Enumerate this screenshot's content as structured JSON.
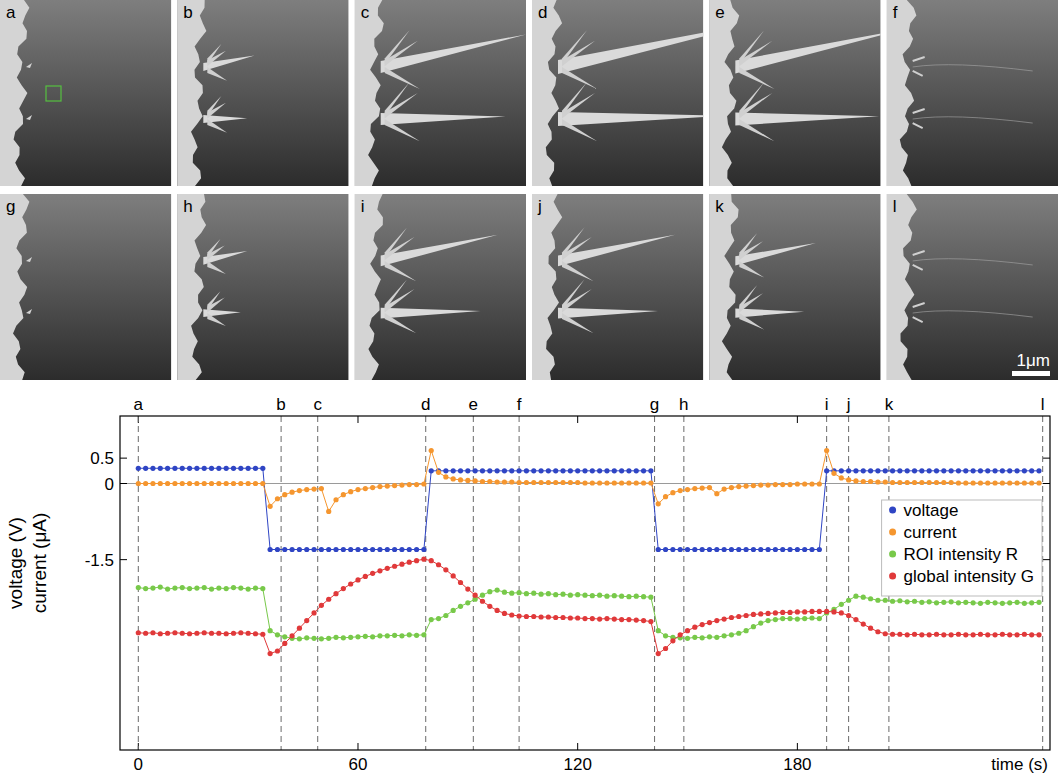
{
  "panels": {
    "labels": [
      "a",
      "b",
      "c",
      "d",
      "e",
      "f",
      "g",
      "h",
      "i",
      "j",
      "k",
      "l"
    ],
    "scale_bar": "1μm"
  },
  "chart_data": {
    "type": "line",
    "x_label": "time (s)",
    "y_label": [
      "voltage (V)",
      "current (μA)"
    ],
    "xlim": [
      -5,
      249
    ],
    "xticks": [
      0,
      60,
      120,
      180
    ],
    "ylim": [
      -5.25,
      1.33
    ],
    "yticks": [
      0.5,
      0,
      -1.5
    ],
    "legend": "right",
    "marker": "circle",
    "line_style": "solid",
    "annotations": [
      {
        "label": "a",
        "x": 0
      },
      {
        "label": "b",
        "x": 39
      },
      {
        "label": "c",
        "x": 49
      },
      {
        "label": "d",
        "x": 78.5
      },
      {
        "label": "e",
        "x": 91.5
      },
      {
        "label": "f",
        "x": 104
      },
      {
        "label": "g",
        "x": 141
      },
      {
        "label": "h",
        "x": 149
      },
      {
        "label": "i",
        "x": 188
      },
      {
        "label": "j",
        "x": 194
      },
      {
        "label": "k",
        "x": 205
      },
      {
        "label": "l",
        "x": 247
      }
    ],
    "x": [
      0,
      2,
      4,
      6,
      8,
      10,
      12,
      14,
      16,
      18,
      20,
      22,
      24,
      26,
      28,
      30,
      32,
      34,
      36,
      38,
      40,
      42,
      44,
      46,
      48,
      50,
      52,
      54,
      56,
      58,
      60,
      62,
      64,
      66,
      68,
      70,
      72,
      74,
      76,
      78,
      80,
      82,
      84,
      86,
      88,
      90,
      92,
      94,
      96,
      98,
      100,
      102,
      104,
      106,
      108,
      110,
      112,
      114,
      116,
      118,
      120,
      122,
      124,
      126,
      128,
      130,
      132,
      134,
      136,
      138,
      140,
      142,
      144,
      146,
      148,
      150,
      152,
      154,
      156,
      158,
      160,
      162,
      164,
      166,
      168,
      170,
      172,
      174,
      176,
      178,
      180,
      182,
      184,
      186,
      188,
      190,
      192,
      194,
      196,
      198,
      200,
      202,
      204,
      206,
      208,
      210,
      212,
      214,
      216,
      218,
      220,
      222,
      224,
      226,
      228,
      230,
      232,
      234,
      236,
      238,
      240,
      242,
      244,
      246
    ],
    "series": [
      {
        "name": "voltage",
        "color": "#2f45c4",
        "values": [
          0.3,
          0.3,
          0.3,
          0.3,
          0.3,
          0.3,
          0.3,
          0.3,
          0.3,
          0.3,
          0.3,
          0.3,
          0.3,
          0.3,
          0.3,
          0.3,
          0.3,
          0.3,
          -1.3,
          -1.3,
          -1.3,
          -1.3,
          -1.3,
          -1.3,
          -1.3,
          -1.3,
          -1.3,
          -1.3,
          -1.3,
          -1.3,
          -1.3,
          -1.3,
          -1.3,
          -1.3,
          -1.3,
          -1.3,
          -1.3,
          -1.3,
          -1.3,
          -1.3,
          0.25,
          0.25,
          0.25,
          0.25,
          0.25,
          0.25,
          0.25,
          0.25,
          0.25,
          0.25,
          0.25,
          0.25,
          0.25,
          0.25,
          0.25,
          0.25,
          0.25,
          0.25,
          0.25,
          0.25,
          0.25,
          0.25,
          0.25,
          0.25,
          0.25,
          0.25,
          0.25,
          0.25,
          0.25,
          0.25,
          0.25,
          -1.3,
          -1.3,
          -1.3,
          -1.3,
          -1.3,
          -1.3,
          -1.3,
          -1.3,
          -1.3,
          -1.3,
          -1.3,
          -1.3,
          -1.3,
          -1.3,
          -1.3,
          -1.3,
          -1.3,
          -1.3,
          -1.3,
          -1.3,
          -1.3,
          -1.3,
          -1.3,
          0.25,
          0.25,
          0.25,
          0.25,
          0.25,
          0.25,
          0.25,
          0.25,
          0.25,
          0.25,
          0.25,
          0.25,
          0.25,
          0.25,
          0.25,
          0.25,
          0.25,
          0.25,
          0.25,
          0.25,
          0.25,
          0.25,
          0.25,
          0.25,
          0.25,
          0.25,
          0.25,
          0.25,
          0.25,
          0.25
        ]
      },
      {
        "name": "current",
        "color": "#f5962f",
        "values": [
          0,
          0,
          0,
          0,
          0,
          0,
          0,
          0,
          0,
          0,
          0,
          0,
          0,
          0,
          0,
          0,
          0,
          0,
          -0.45,
          -0.3,
          -0.22,
          -0.17,
          -0.14,
          -0.12,
          -0.11,
          -0.1,
          -0.55,
          -0.32,
          -0.22,
          -0.16,
          -0.12,
          -0.1,
          -0.08,
          -0.06,
          -0.05,
          -0.04,
          -0.03,
          -0.02,
          -0.02,
          -0.01,
          0.65,
          0.22,
          0.13,
          0.09,
          0.07,
          0.06,
          0.05,
          0.04,
          0.04,
          0.03,
          0.03,
          0.03,
          0.02,
          0.02,
          0.02,
          0.02,
          0.02,
          0.02,
          0.02,
          0.02,
          0.02,
          0.01,
          0.01,
          0.01,
          0.01,
          0.01,
          0.01,
          0.01,
          0.01,
          0.01,
          0.01,
          -0.4,
          -0.26,
          -0.18,
          -0.14,
          -0.12,
          -0.1,
          -0.09,
          -0.08,
          -0.2,
          -0.11,
          -0.08,
          -0.06,
          -0.05,
          -0.04,
          -0.03,
          -0.03,
          -0.02,
          -0.02,
          -0.02,
          -0.01,
          -0.01,
          -0.01,
          -0.01,
          0.65,
          0.2,
          0.11,
          0.07,
          0.05,
          0.04,
          0.04,
          0.03,
          0.03,
          0.02,
          0.02,
          0.02,
          0.02,
          0.02,
          0.02,
          0.02,
          0.02,
          0.02,
          0.01,
          0.01,
          0.01,
          0.01,
          0.01,
          0.01,
          0.01,
          0.01,
          0.01,
          0.01,
          0.01,
          0.01
        ]
      },
      {
        "name": "ROI intensity R",
        "color": "#78c94a",
        "values": [
          -2.05,
          -2.07,
          -2.06,
          -2.04,
          -2.08,
          -2.06,
          -2.05,
          -2.07,
          -2.06,
          -2.05,
          -2.08,
          -2.06,
          -2.07,
          -2.05,
          -2.06,
          -2.08,
          -2.06,
          -2.07,
          -2.9,
          -2.98,
          -3.02,
          -3.05,
          -3.06,
          -3.04,
          -3.05,
          -3.06,
          -3.05,
          -3.03,
          -3.04,
          -3.03,
          -3.02,
          -3.01,
          -3.02,
          -3.0,
          -3.0,
          -2.99,
          -3.0,
          -2.98,
          -2.99,
          -2.98,
          -2.68,
          -2.66,
          -2.6,
          -2.5,
          -2.42,
          -2.35,
          -2.28,
          -2.2,
          -2.13,
          -2.1,
          -2.14,
          -2.16,
          -2.15,
          -2.17,
          -2.16,
          -2.18,
          -2.17,
          -2.19,
          -2.18,
          -2.2,
          -2.19,
          -2.2,
          -2.21,
          -2.2,
          -2.22,
          -2.21,
          -2.22,
          -2.23,
          -2.22,
          -2.23,
          -2.24,
          -2.9,
          -3.0,
          -3.03,
          -3.04,
          -3.05,
          -3.03,
          -3.04,
          -3.02,
          -3.03,
          -3.0,
          -2.98,
          -2.95,
          -2.9,
          -2.82,
          -2.75,
          -2.7,
          -2.68,
          -2.66,
          -2.66,
          -2.67,
          -2.66,
          -2.65,
          -2.66,
          -2.55,
          -2.48,
          -2.38,
          -2.3,
          -2.22,
          -2.24,
          -2.27,
          -2.3,
          -2.3,
          -2.32,
          -2.31,
          -2.33,
          -2.32,
          -2.34,
          -2.33,
          -2.35,
          -2.34,
          -2.33,
          -2.35,
          -2.34,
          -2.35,
          -2.36,
          -2.34,
          -2.35,
          -2.36,
          -2.35,
          -2.34,
          -2.36,
          -2.35,
          -2.34
        ]
      },
      {
        "name": "global intensity G",
        "color": "#e0393a",
        "values": [
          -2.94,
          -2.95,
          -2.94,
          -2.96,
          -2.95,
          -2.94,
          -2.95,
          -2.96,
          -2.95,
          -2.94,
          -2.95,
          -2.95,
          -2.96,
          -2.95,
          -2.94,
          -2.95,
          -2.96,
          -2.97,
          -3.35,
          -3.3,
          -3.15,
          -3.0,
          -2.85,
          -2.7,
          -2.55,
          -2.4,
          -2.28,
          -2.17,
          -2.07,
          -1.98,
          -1.9,
          -1.83,
          -1.77,
          -1.72,
          -1.67,
          -1.63,
          -1.59,
          -1.55,
          -1.52,
          -1.49,
          -1.52,
          -1.6,
          -1.7,
          -1.82,
          -1.95,
          -2.08,
          -2.2,
          -2.32,
          -2.42,
          -2.5,
          -2.56,
          -2.59,
          -2.61,
          -2.62,
          -2.62,
          -2.63,
          -2.63,
          -2.64,
          -2.64,
          -2.65,
          -2.65,
          -2.66,
          -2.66,
          -2.67,
          -2.66,
          -2.67,
          -2.68,
          -2.68,
          -2.69,
          -2.7,
          -2.72,
          -3.35,
          -3.25,
          -3.1,
          -2.98,
          -2.9,
          -2.83,
          -2.78,
          -2.74,
          -2.7,
          -2.67,
          -2.64,
          -2.62,
          -2.6,
          -2.58,
          -2.57,
          -2.56,
          -2.55,
          -2.54,
          -2.54,
          -2.53,
          -2.53,
          -2.52,
          -2.52,
          -2.52,
          -2.53,
          -2.55,
          -2.6,
          -2.68,
          -2.77,
          -2.85,
          -2.92,
          -2.96,
          -2.97,
          -2.97,
          -2.98,
          -2.97,
          -2.98,
          -2.98,
          -2.97,
          -2.98,
          -2.98,
          -2.97,
          -2.98,
          -2.98,
          -2.97,
          -2.98,
          -2.98,
          -2.97,
          -2.98,
          -2.98,
          -2.97,
          -2.98,
          -2.98
        ]
      }
    ]
  }
}
